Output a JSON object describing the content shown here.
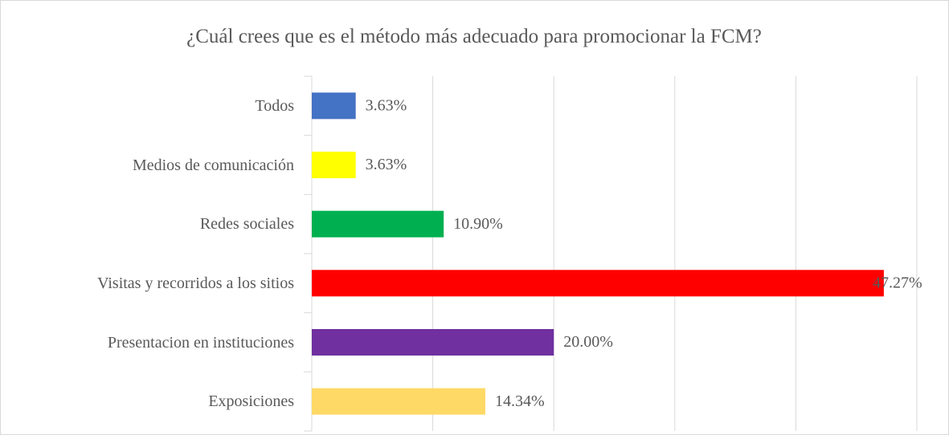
{
  "chart_data": {
    "type": "bar",
    "orientation": "horizontal",
    "title": "¿Cuál crees que es el método más adecuado para promocionar la FCM?",
    "categories": [
      "Todos",
      "Medios de comunicación",
      "Redes sociales",
      "Visitas y recorridos a los sitios",
      "Presentacion en instituciones",
      "Exposiciones"
    ],
    "values": [
      3.63,
      3.63,
      10.9,
      47.27,
      20.0,
      14.34
    ],
    "value_labels": [
      "3.63%",
      "3.63%",
      "10.90%",
      "47.27%",
      "20.00%",
      "14.34%"
    ],
    "colors": [
      "#4472c4",
      "#ffff00",
      "#00b050",
      "#ff0000",
      "#7030a0",
      "#ffd966"
    ],
    "xlim": [
      0,
      50
    ],
    "xticks": [
      0,
      10,
      20,
      30,
      40,
      50
    ],
    "grid": true
  }
}
